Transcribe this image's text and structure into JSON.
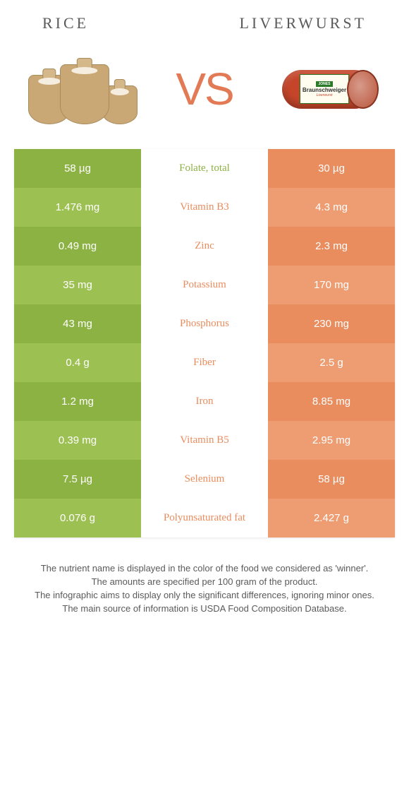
{
  "header": {
    "left": "RICE",
    "right": "LIVERWURST"
  },
  "vs": "VS",
  "sausage_label": {
    "logo": "JONES",
    "brand": "Braunschweiger",
    "sub": "Liverwurst"
  },
  "colors": {
    "green_dark": "#8db244",
    "green_light": "#9cc051",
    "orange_dark": "#e98c5e",
    "orange_light": "#ee9d73",
    "white": "#ffffff"
  },
  "table": {
    "rows": [
      {
        "left": "58 µg",
        "mid": "Folate, total",
        "right": "30 µg",
        "winner": "left"
      },
      {
        "left": "1.476 mg",
        "mid": "Vitamin B3",
        "right": "4.3 mg",
        "winner": "right"
      },
      {
        "left": "0.49 mg",
        "mid": "Zinc",
        "right": "2.3 mg",
        "winner": "right"
      },
      {
        "left": "35 mg",
        "mid": "Potassium",
        "right": "170 mg",
        "winner": "right"
      },
      {
        "left": "43 mg",
        "mid": "Phosphorus",
        "right": "230 mg",
        "winner": "right"
      },
      {
        "left": "0.4 g",
        "mid": "Fiber",
        "right": "2.5 g",
        "winner": "right"
      },
      {
        "left": "1.2 mg",
        "mid": "Iron",
        "right": "8.85 mg",
        "winner": "right"
      },
      {
        "left": "0.39 mg",
        "mid": "Vitamin B5",
        "right": "2.95 mg",
        "winner": "right"
      },
      {
        "left": "7.5 µg",
        "mid": "Selenium",
        "right": "58 µg",
        "winner": "right"
      },
      {
        "left": "0.076 g",
        "mid": "Polyunsaturated fat",
        "right": "2.427 g",
        "winner": "right"
      }
    ]
  },
  "footnotes": [
    "The nutrient name is displayed in the color of the food we considered as 'winner'.",
    "The amounts are specified per 100 gram of the product.",
    "The infographic aims to display only the significant differences, ignoring minor ones.",
    "The main source of information is USDA Food Composition Database."
  ]
}
